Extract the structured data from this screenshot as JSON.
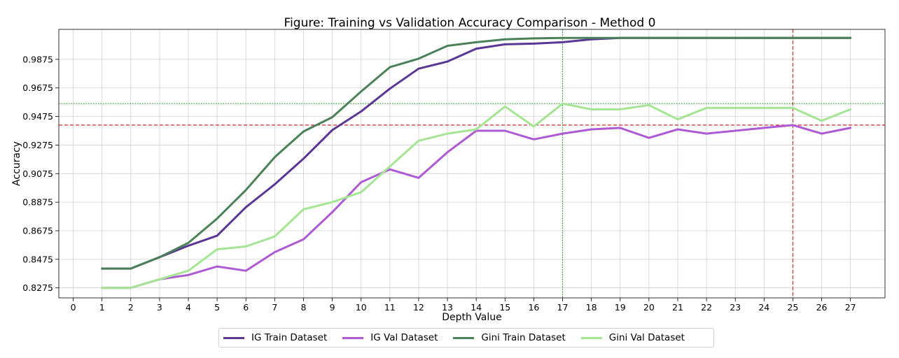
{
  "chart_data": {
    "type": "line",
    "title": "Figure: Training vs Validation Accuracy Comparison - Method 0",
    "xlabel": "Depth Value",
    "ylabel": "Accuracy",
    "x_ticks": [
      "0",
      "1",
      "2",
      "3",
      "4",
      "5",
      "6",
      "7",
      "8",
      "9",
      "10",
      "11",
      "12",
      "13",
      "14",
      "15",
      "16",
      "17",
      "18",
      "19",
      "20",
      "21",
      "22",
      "23",
      "24",
      "25",
      "26",
      "27"
    ],
    "y_ticks": [
      "0.8275",
      "0.8475",
      "0.8675",
      "0.8875",
      "0.9075",
      "0.9275",
      "0.9475",
      "0.9675",
      "0.9875"
    ],
    "xlim": [
      -0.5,
      28.2
    ],
    "ylim": [
      0.8205,
      1.0085
    ],
    "grid": true,
    "legend_placement": "bottom-center",
    "x": [
      1,
      2,
      3,
      4,
      5,
      6,
      7,
      8,
      9,
      10,
      11,
      12,
      13,
      14,
      15,
      16,
      17,
      18,
      19,
      20,
      21,
      22,
      23,
      24,
      25,
      26,
      27
    ],
    "series": [
      {
        "name": "IG Train Dataset",
        "color": "#5a3795",
        "values": [
          0.841,
          0.841,
          0.849,
          0.857,
          0.864,
          0.884,
          0.9,
          0.918,
          0.938,
          0.951,
          0.967,
          0.981,
          0.986,
          0.995,
          0.998,
          0.9985,
          0.9995,
          1.0015,
          1.0025,
          1.0025,
          1.0025,
          1.0025,
          1.0025,
          1.0025,
          1.0025,
          1.0025,
          1.0025
        ]
      },
      {
        "name": "IG Val Dataset",
        "color": "#ad5ad3",
        "values": [
          0.8275,
          0.8275,
          0.8335,
          0.8365,
          0.8425,
          0.8395,
          0.8525,
          0.8615,
          0.8805,
          0.9015,
          0.9105,
          0.9045,
          0.9225,
          0.9375,
          0.9375,
          0.9315,
          0.9355,
          0.9385,
          0.9395,
          0.9325,
          0.9385,
          0.9355,
          0.9375,
          0.9395,
          0.9415,
          0.9355,
          0.9395
        ]
      },
      {
        "name": "Gini Train Dataset",
        "color": "#4b8158",
        "values": [
          0.841,
          0.841,
          0.849,
          0.859,
          0.876,
          0.896,
          0.919,
          0.937,
          0.947,
          0.965,
          0.982,
          0.988,
          0.997,
          0.9995,
          1.0015,
          1.0022,
          1.0025,
          1.0025,
          1.0025,
          1.0025,
          1.0025,
          1.0025,
          1.0025,
          1.0025,
          1.0025,
          1.0025,
          1.0025
        ]
      },
      {
        "name": "Gini Val Dataset",
        "color": "#a4e493",
        "values": [
          0.8275,
          0.8275,
          0.8335,
          0.8395,
          0.8545,
          0.8565,
          0.8635,
          0.8825,
          0.8875,
          0.8945,
          0.9125,
          0.9305,
          0.9355,
          0.9385,
          0.9545,
          0.9405,
          0.9565,
          0.9525,
          0.9525,
          0.9555,
          0.9455,
          0.9535,
          0.9535,
          0.9535,
          0.9535,
          0.9445,
          0.9525
        ]
      }
    ],
    "reference_lines": [
      {
        "axis": "y",
        "value": 0.9415,
        "color": "#d62728",
        "style": "dashed"
      },
      {
        "axis": "x",
        "value": 25,
        "color": "#d62728",
        "style": "dashed"
      },
      {
        "axis": "y",
        "value": 0.9565,
        "color": "#2ca02c",
        "style": "dotted"
      },
      {
        "axis": "x",
        "value": 17,
        "color": "#2ca02c",
        "style": "dotted"
      }
    ]
  }
}
